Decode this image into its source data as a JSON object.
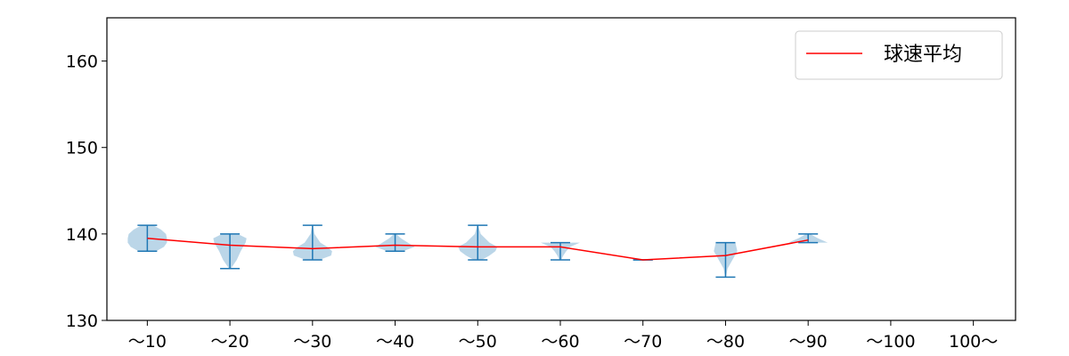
{
  "chart_data": {
    "type": "violin",
    "categories": [
      "〜10",
      "〜20",
      "〜30",
      "〜40",
      "〜50",
      "〜60",
      "〜70",
      "〜80",
      "〜90",
      "〜100",
      "100〜"
    ],
    "ylim": [
      130,
      165
    ],
    "yticks": [
      130,
      140,
      150,
      160
    ],
    "ytick_labels": [
      "130",
      "140",
      "150",
      "160"
    ],
    "grid": false,
    "legend": {
      "position": "top-right"
    },
    "violins": [
      {
        "category": "〜10",
        "min": 138,
        "max": 141,
        "mean": 139.5,
        "profile": [
          [
            138,
            0.45
          ],
          [
            138.5,
            0.85
          ],
          [
            139,
            1.0
          ],
          [
            139.5,
            1.0
          ],
          [
            140,
            0.95
          ],
          [
            140.5,
            0.7
          ],
          [
            141,
            0.3
          ]
        ]
      },
      {
        "category": "〜20",
        "min": 136,
        "max": 140,
        "mean": 138.7,
        "profile": [
          [
            136,
            0.05
          ],
          [
            137,
            0.35
          ],
          [
            138,
            0.55
          ],
          [
            139,
            0.8
          ],
          [
            139.5,
            0.85
          ],
          [
            140,
            0.4
          ]
        ]
      },
      {
        "category": "〜30",
        "min": 137,
        "max": 141,
        "mean": 138.3,
        "profile": [
          [
            137,
            0.35
          ],
          [
            137.5,
            0.95
          ],
          [
            138,
            1.0
          ],
          [
            138.5,
            0.75
          ],
          [
            139,
            0.4
          ],
          [
            140,
            0.1
          ],
          [
            141,
            0.02
          ]
        ]
      },
      {
        "category": "〜40",
        "min": 138,
        "max": 140,
        "mean": 138.7,
        "profile": [
          [
            138,
            0.4
          ],
          [
            138.5,
            1.0
          ],
          [
            139,
            0.65
          ],
          [
            139.5,
            0.3
          ],
          [
            140,
            0.05
          ]
        ]
      },
      {
        "category": "〜50",
        "min": 137,
        "max": 141,
        "mean": 138.5,
        "profile": [
          [
            137,
            0.2
          ],
          [
            137.5,
            0.6
          ],
          [
            138,
            0.9
          ],
          [
            138.5,
            1.0
          ],
          [
            139,
            0.6
          ],
          [
            140,
            0.15
          ],
          [
            141,
            0.02
          ]
        ]
      },
      {
        "category": "〜60",
        "min": 137,
        "max": 139,
        "mean": 138.5,
        "profile": [
          [
            137,
            0.05
          ],
          [
            137.5,
            0.15
          ],
          [
            138,
            0.3
          ],
          [
            138.5,
            0.5
          ],
          [
            139,
            1.0
          ]
        ]
      },
      {
        "category": "〜70",
        "min": 137,
        "max": 137,
        "mean": 137,
        "profile": []
      },
      {
        "category": "〜80",
        "min": 135,
        "max": 139,
        "mean": 137.5,
        "profile": [
          [
            135,
            0.02
          ],
          [
            136,
            0.1
          ],
          [
            137,
            0.35
          ],
          [
            138,
            0.6
          ],
          [
            139,
            0.5
          ]
        ]
      },
      {
        "category": "〜90",
        "min": 139,
        "max": 140,
        "mean": 139.3,
        "profile": [
          [
            139,
            1.0
          ],
          [
            139.5,
            0.5
          ],
          [
            140,
            0.1
          ]
        ]
      },
      {
        "category": "〜100",
        "min": null,
        "max": null,
        "mean": null,
        "profile": []
      },
      {
        "category": "100〜",
        "min": null,
        "max": null,
        "mean": null,
        "profile": []
      }
    ],
    "series": [
      {
        "name": "球速平均",
        "type": "line",
        "color": "#ff0000",
        "values": [
          139.5,
          138.7,
          138.3,
          138.7,
          138.5,
          138.5,
          137.0,
          137.5,
          139.3,
          null,
          null
        ]
      }
    ],
    "colors": {
      "violin_fill": "#1f77b4",
      "violin_edge": "#1f77b4",
      "mean_line": "#ff0000"
    }
  }
}
